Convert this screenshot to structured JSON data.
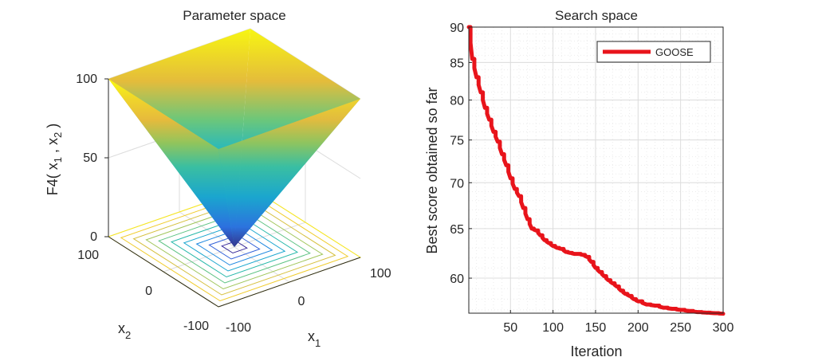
{
  "colors": {
    "series_line": "#e8141b",
    "axis": "#262626",
    "grid": "#dcdcdc",
    "minor_grid": "#ebebeb"
  },
  "chart_data": [
    {
      "type": "surface",
      "title": "Parameter space",
      "zlabel": {
        "pre": "F4( x",
        "sub1": "1",
        "mid": " , x",
        "sub2": "2",
        "post": " )"
      },
      "xlabel": {
        "base": "x",
        "sub": "1"
      },
      "ylabel": {
        "base": "x",
        "sub": "2"
      },
      "xlim": [
        -100,
        100
      ],
      "ylim": [
        -100,
        100
      ],
      "zlim": [
        0,
        100
      ],
      "x_ticks": [
        "-100",
        "0",
        "100"
      ],
      "y_ticks": [
        "-100",
        "0",
        "100"
      ],
      "z_ticks": [
        "0",
        "50",
        "100"
      ],
      "function": "max(|x1|, |x2|)",
      "colormap": "parula",
      "contour_levels": [
        10,
        20,
        30,
        40,
        50,
        60,
        70,
        80,
        90,
        100
      ]
    },
    {
      "type": "line",
      "title": "Search space",
      "xlabel": "Iteration",
      "ylabel": "Best score obtained so far",
      "xlim": [
        1,
        300
      ],
      "ylim": [
        56.7,
        90
      ],
      "y_scale": "log",
      "grid": true,
      "minor_grid": true,
      "legend_position": "top-right",
      "x_ticks": [
        "50",
        "100",
        "150",
        "200",
        "250",
        "300"
      ],
      "y_ticks": [
        "60",
        "65",
        "70",
        "75",
        "80",
        "85",
        "90"
      ],
      "series": [
        {
          "name": "GOOSE",
          "x": [
            1,
            5,
            10,
            15,
            20,
            25,
            30,
            35,
            40,
            45,
            50,
            55,
            60,
            65,
            70,
            75,
            80,
            85,
            90,
            95,
            100,
            105,
            110,
            115,
            120,
            125,
            130,
            135,
            140,
            145,
            150,
            155,
            160,
            165,
            170,
            175,
            180,
            185,
            190,
            195,
            200,
            210,
            220,
            230,
            240,
            250,
            260,
            270,
            280,
            290,
            300
          ],
          "y": [
            90,
            85.5,
            83,
            81,
            79,
            77.5,
            76,
            74.8,
            73.3,
            72,
            70.5,
            69.3,
            68.5,
            67.2,
            66,
            65,
            64.8,
            64.3,
            63.8,
            63.5,
            63.2,
            63.0,
            62.9,
            62.6,
            62.5,
            62.4,
            62.4,
            62.3,
            62.1,
            61.6,
            61.0,
            60.6,
            60.2,
            59.8,
            59.5,
            59.2,
            58.8,
            58.5,
            58.3,
            58.0,
            57.8,
            57.5,
            57.4,
            57.2,
            57.1,
            57.0,
            56.9,
            56.8,
            56.75,
            56.7,
            56.65
          ]
        }
      ]
    }
  ]
}
